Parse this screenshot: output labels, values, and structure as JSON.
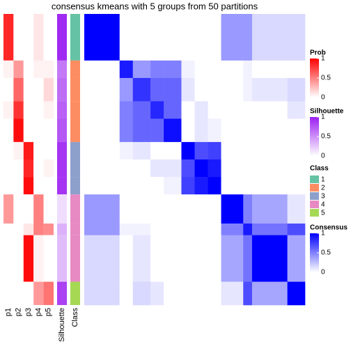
{
  "chart_data": {
    "type": "heatmap",
    "title": "consensus kmeans with 5 groups from 50 partitions",
    "prob_columns": [
      "p1",
      "p2",
      "p3",
      "p4",
      "p5"
    ],
    "silhouette_label": "Silhouette",
    "class_label": "Class",
    "segments": [
      {
        "n": 8,
        "class": 1,
        "prob": [
          0.85,
          0,
          0,
          0.1,
          0
        ],
        "silhouette": 0.95
      },
      {
        "n": 3,
        "class": 2,
        "prob": [
          0.05,
          0.4,
          0,
          0.05,
          0.05
        ],
        "silhouette": 0.6
      },
      {
        "n": 4,
        "class": 2,
        "prob": [
          0,
          0.6,
          0,
          0,
          0.15
        ],
        "silhouette": 0.65
      },
      {
        "n": 3,
        "class": 2,
        "prob": [
          0.05,
          0.8,
          0,
          0,
          0.05
        ],
        "silhouette": 0.7
      },
      {
        "n": 4,
        "class": 2,
        "prob": [
          0,
          0.95,
          0,
          0,
          0
        ],
        "silhouette": 0.75
      },
      {
        "n": 3,
        "class": 3,
        "prob": [
          0,
          0.05,
          0.9,
          0,
          0
        ],
        "silhouette": 0.9
      },
      {
        "n": 3,
        "class": 3,
        "prob": [
          0,
          0,
          0.85,
          0,
          0.05
        ],
        "silhouette": 0.9
      },
      {
        "n": 3,
        "class": 3,
        "prob": [
          0,
          0,
          0.95,
          0,
          0
        ],
        "silhouette": 0.9
      },
      {
        "n": 5,
        "class": 4,
        "prob": [
          0.4,
          0,
          0,
          0.5,
          0
        ],
        "silhouette": 0.15
      },
      {
        "n": 2,
        "class": 4,
        "prob": [
          0,
          0,
          0.1,
          0.5,
          0.45
        ],
        "silhouette": 0.35
      },
      {
        "n": 8,
        "class": 4,
        "prob": [
          0,
          0,
          0.95,
          0.05,
          0
        ],
        "silhouette": 0.3
      },
      {
        "n": 4,
        "class": 5,
        "prob": [
          0,
          0,
          0,
          0.4,
          0.55
        ],
        "silhouette": 0.85
      }
    ],
    "consensus": [
      [
        1,
        0,
        0,
        0,
        0,
        0,
        0,
        0,
        0.4,
        0.4,
        0.15,
        0.15
      ],
      [
        0,
        0.9,
        0.4,
        0.5,
        0.5,
        0.05,
        0,
        0,
        0,
        0.05,
        0,
        0
      ],
      [
        0,
        0.4,
        0.8,
        0.6,
        0.6,
        0.1,
        0,
        0,
        0,
        0.05,
        0.1,
        0.15
      ],
      [
        0,
        0.5,
        0.6,
        0.85,
        0.6,
        0,
        0.1,
        0,
        0,
        0,
        0,
        0.1
      ],
      [
        0,
        0.5,
        0.6,
        0.6,
        0.95,
        0,
        0.1,
        0.05,
        0,
        0,
        0,
        0
      ],
      [
        0,
        0.05,
        0.1,
        0,
        0,
        1,
        0.7,
        0.75,
        0,
        0,
        0,
        0
      ],
      [
        0,
        0,
        0,
        0.1,
        0.1,
        0.7,
        1,
        0.9,
        0,
        0,
        0,
        0
      ],
      [
        0,
        0,
        0,
        0,
        0.05,
        0.75,
        0.9,
        1,
        0,
        0,
        0,
        0
      ],
      [
        0.4,
        0,
        0,
        0,
        0,
        0,
        0,
        0,
        1,
        0.5,
        0.35,
        0.1
      ],
      [
        0.4,
        0.05,
        0.05,
        0,
        0,
        0,
        0,
        0,
        0.5,
        0.9,
        0.55,
        0.7
      ],
      [
        0.15,
        0,
        0.1,
        0,
        0,
        0,
        0,
        0,
        0.35,
        0.55,
        1,
        0.35
      ],
      [
        0.15,
        0,
        0.15,
        0.1,
        0,
        0,
        0,
        0,
        0.1,
        0.7,
        0.35,
        1
      ]
    ],
    "legends": {
      "prob": {
        "title": "Prob",
        "ticks": [
          0,
          0.5,
          1
        ],
        "color": "#ff0000"
      },
      "silhouette": {
        "title": "Silhouette",
        "ticks": [
          0,
          0.5,
          1
        ],
        "color": "#9b1ff0"
      },
      "class": {
        "title": "Class",
        "items": [
          {
            "label": "1",
            "color": "#66c2a5"
          },
          {
            "label": "2",
            "color": "#fc8d62"
          },
          {
            "label": "3",
            "color": "#8da0cb"
          },
          {
            "label": "4",
            "color": "#e78ac3"
          },
          {
            "label": "5",
            "color": "#a6d854"
          }
        ]
      },
      "consensus": {
        "title": "Consensus",
        "ticks": [
          0,
          0.5,
          1
        ],
        "color": "#0000ff"
      }
    }
  }
}
